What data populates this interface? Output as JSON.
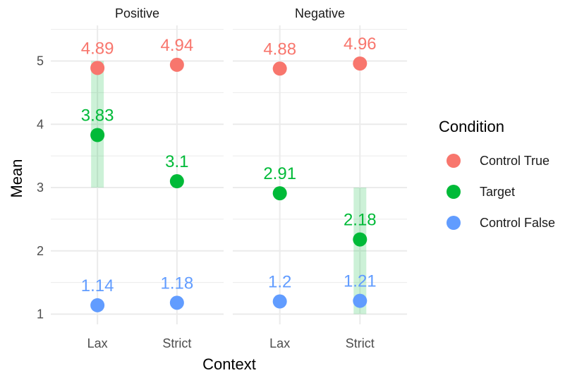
{
  "chart_data": {
    "type": "scatter",
    "facets": [
      "Positive",
      "Negative"
    ],
    "categories": [
      "Lax",
      "Strict"
    ],
    "xlabel": "Context",
    "ylabel": "Mean",
    "yticks": [
      1,
      2,
      3,
      4,
      5
    ],
    "ylim": [
      0.95,
      5.55
    ],
    "grid": true,
    "legend": {
      "title": "Condition",
      "position": "right",
      "entries": [
        {
          "name": "Control True",
          "color": "#F8766D"
        },
        {
          "name": "Target",
          "color": "#00BA38"
        },
        {
          "name": "Control False",
          "color": "#619CFF"
        }
      ]
    },
    "series": [
      {
        "name": "Control True",
        "color": "#F8766D",
        "labels": {
          "Positive": [
            "4.89",
            "4.94"
          ],
          "Negative": [
            "4.88",
            "4.96"
          ]
        },
        "values": {
          "Positive": [
            4.89,
            4.94
          ],
          "Negative": [
            4.88,
            4.96
          ]
        }
      },
      {
        "name": "Target",
        "color": "#00BA38",
        "labels": {
          "Positive": [
            "3.83",
            "3.1"
          ],
          "Negative": [
            "2.91",
            "2.18"
          ]
        },
        "values": {
          "Positive": [
            3.83,
            3.1
          ],
          "Negative": [
            2.91,
            2.18
          ]
        }
      },
      {
        "name": "Control False",
        "color": "#619CFF",
        "labels": {
          "Positive": [
            "1.14",
            "1.18"
          ],
          "Negative": [
            "1.2",
            "1.21"
          ]
        },
        "values": {
          "Positive": [
            1.14,
            1.18
          ],
          "Negative": [
            1.2,
            1.21
          ]
        }
      }
    ],
    "highlight_bands": [
      {
        "facet": "Positive",
        "category": "Lax",
        "from": 3,
        "to": 5,
        "color": "#00BA38"
      },
      {
        "facet": "Negative",
        "category": "Strict",
        "from": 1,
        "to": 3,
        "color": "#00BA38"
      }
    ]
  }
}
